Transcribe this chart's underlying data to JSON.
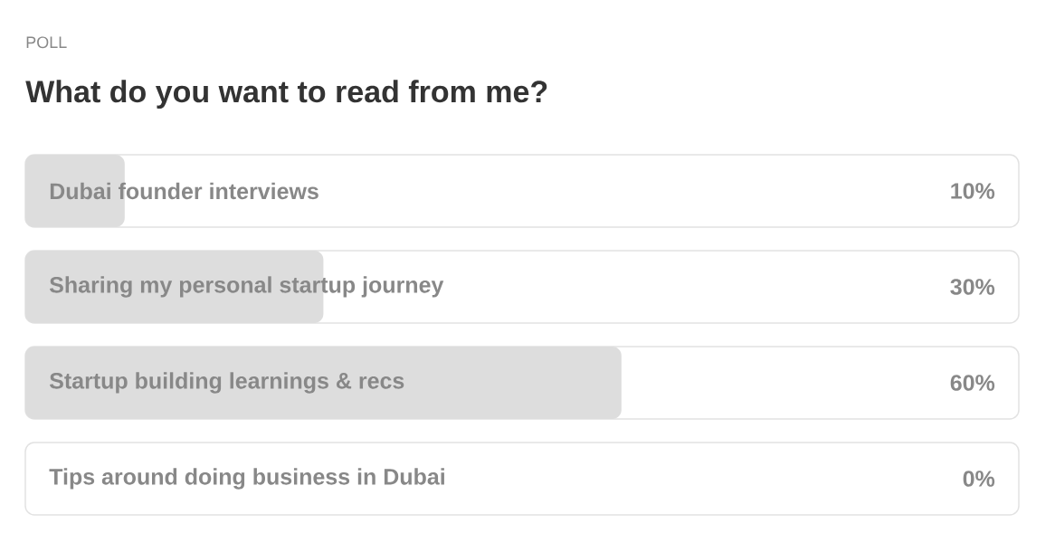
{
  "chart_data": {
    "type": "bar",
    "orientation": "horizontal",
    "subtitle": "POLL",
    "title": "What do you want to read from me?",
    "categories": [
      "Dubai founder interviews",
      "Sharing my personal startup journey",
      "Startup building learnings & recs",
      "Tips around doing business in Dubai"
    ],
    "values": [
      10,
      30,
      60,
      0
    ],
    "value_labels": [
      "10%",
      "30%",
      "60%",
      "0%"
    ],
    "color": "#dddddd",
    "xlim": [
      0,
      100
    ]
  }
}
